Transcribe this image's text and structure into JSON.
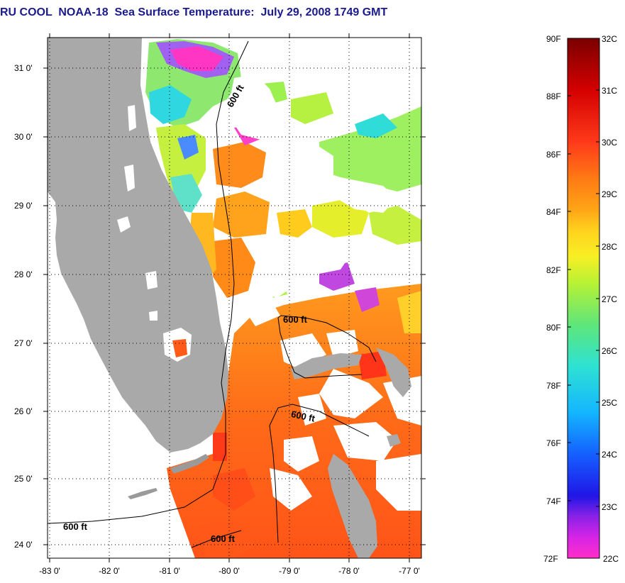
{
  "header": {
    "title": "RU COOL  NOAA-18  Sea Surface Temperature:  July 29, 2008 1749 GMT"
  },
  "map": {
    "lat_ticks": [
      "31 0'",
      "30 0'",
      "29 0'",
      "28 0'",
      "27 0'",
      "26 0'",
      "25 0'",
      "24 0'"
    ],
    "lon_ticks": [
      "-83 0'",
      "-82 0'",
      "-81 0'",
      "-80 0'",
      "-79 0'",
      "-78 0'",
      "-77 0'"
    ],
    "contour_labels": [
      "600 ft",
      "600 ft",
      "600 ft",
      "600 ft",
      "600 ft"
    ],
    "land_color": "#a9a9a9"
  },
  "colorbar": {
    "fahrenheit_labels": [
      "90F",
      "88F",
      "86F",
      "84F",
      "82F",
      "80F",
      "78F",
      "76F",
      "74F",
      "72F"
    ],
    "celsius_labels": [
      "32C",
      "31C",
      "30C",
      "29C",
      "28C",
      "27C",
      "26C",
      "25C",
      "24C",
      "23C",
      "22C"
    ],
    "gradient_colors": [
      "#7a0000",
      "#d40000",
      "#ff3a1a",
      "#ff7a14",
      "#ffa516",
      "#ffd21e",
      "#f7ef24",
      "#b8f234",
      "#5fe678",
      "#2ee2d2",
      "#13b6ff",
      "#1560ff",
      "#2016e6",
      "#8a22e6",
      "#d624e6",
      "#ff2ec8"
    ]
  }
}
